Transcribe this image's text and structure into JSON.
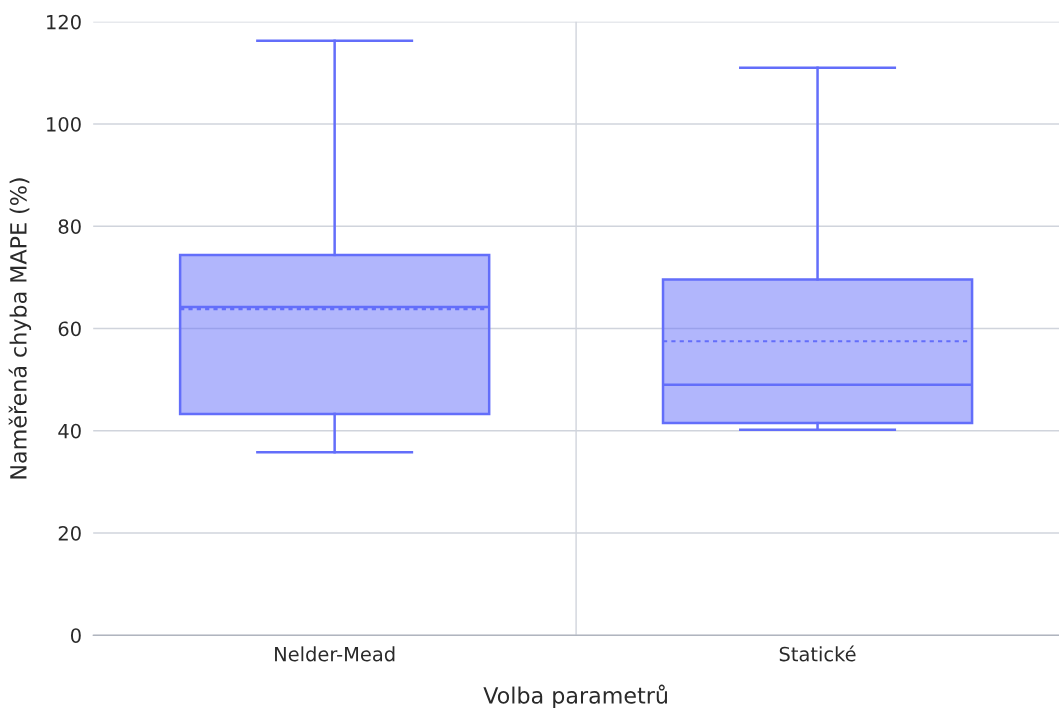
{
  "chart_data": {
    "type": "box",
    "xlabel": "Volba parametrů",
    "ylabel": "Naměřená chyba MAPE (%)",
    "categories": [
      "Nelder-Mead",
      "Statické"
    ],
    "series": [
      {
        "color": "#636efa",
        "boxes": [
          {
            "low": 35.8,
            "q1": 43.3,
            "median": 64.2,
            "q3": 74.4,
            "high": 116.3,
            "mean": 63.8
          },
          {
            "low": 40.2,
            "q1": 41.5,
            "median": 49.0,
            "q3": 69.6,
            "high": 111.0,
            "mean": 57.5
          }
        ]
      }
    ],
    "ylim": [
      0,
      120
    ],
    "yticks": [
      0,
      20,
      40,
      60,
      80,
      100,
      120
    ],
    "grid": true
  }
}
